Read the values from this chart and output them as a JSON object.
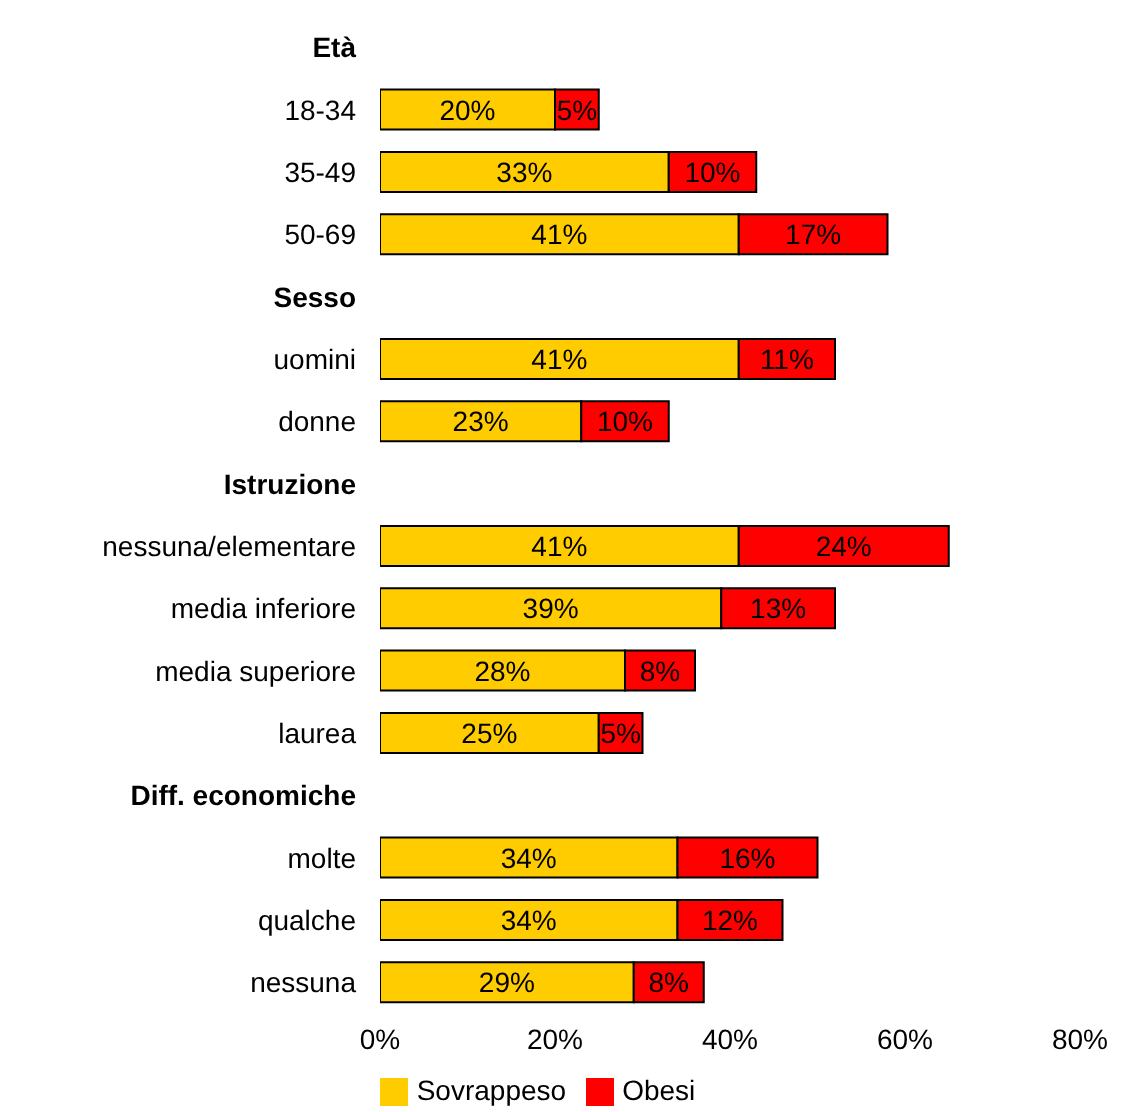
{
  "chart_data": {
    "type": "bar",
    "orientation": "horizontal",
    "stacked": true,
    "categories": [
      "Età",
      "18-34",
      "35-49",
      "50-69",
      "Sesso",
      "uomini",
      "donne",
      "Istruzione",
      "nessuna/elementare",
      "media inferiore",
      "media superiore",
      "laurea",
      "Diff. economiche",
      "molte",
      "qualche",
      "nessuna"
    ],
    "series": [
      {
        "name": "Sovrappeso",
        "color": "#ffcc00",
        "values": [
          null,
          20,
          33,
          41,
          null,
          41,
          23,
          null,
          41,
          39,
          28,
          25,
          null,
          34,
          34,
          29
        ],
        "value_labels": [
          null,
          "20%",
          "33%",
          "41%",
          null,
          "41%",
          "23%",
          null,
          "41%",
          "39%",
          "28%",
          "25%",
          null,
          "34%",
          "34%",
          "29%"
        ]
      },
      {
        "name": "Obesi",
        "color": "#ff0000",
        "values": [
          null,
          5,
          10,
          17,
          null,
          11,
          10,
          null,
          24,
          13,
          8,
          5,
          null,
          16,
          12,
          8
        ],
        "value_labels": [
          null,
          "5%",
          "10%",
          "17%",
          null,
          "11%",
          "10%",
          null,
          "24%",
          "13%",
          "8%",
          "5%",
          null,
          "16%",
          "12%",
          "8%"
        ]
      }
    ],
    "xlim": [
      0,
      80
    ],
    "xticks": [
      {
        "value": 0,
        "label": "0%"
      },
      {
        "value": 20,
        "label": "20%"
      },
      {
        "value": 40,
        "label": "40%"
      },
      {
        "value": 60,
        "label": "60%"
      },
      {
        "value": 80,
        "label": "80%"
      }
    ],
    "legend": "bottom",
    "grid": false
  }
}
